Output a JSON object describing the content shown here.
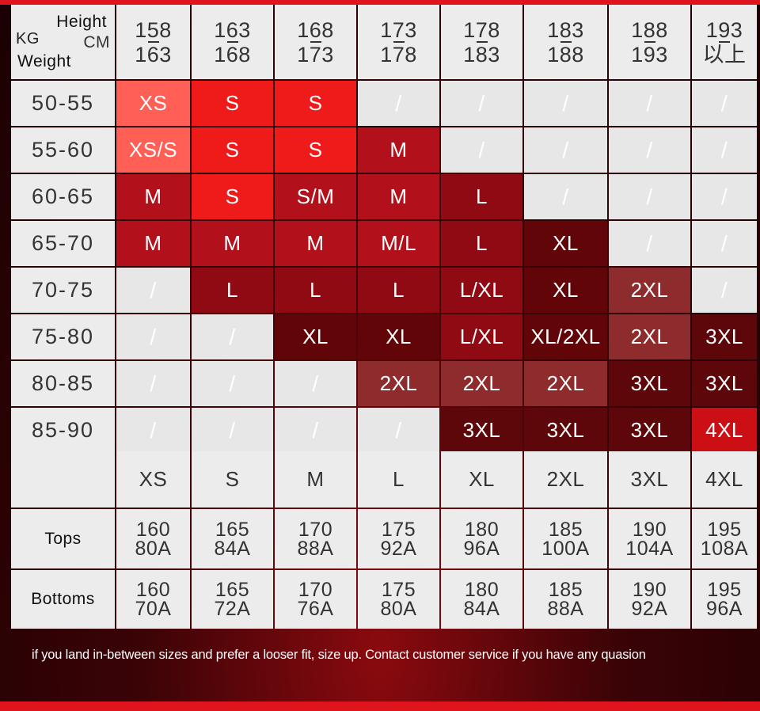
{
  "size_chart": {
    "corner": {
      "height_label": "Height",
      "kg_label": "KG",
      "cm_label": "CM",
      "weight_label": "Weight"
    },
    "height_ranges": [
      {
        "from": "158",
        "to": "163"
      },
      {
        "from": "163",
        "to": "168"
      },
      {
        "from": "168",
        "to": "173"
      },
      {
        "from": "173",
        "to": "178"
      },
      {
        "from": "178",
        "to": "183"
      },
      {
        "from": "183",
        "to": "188"
      },
      {
        "from": "188",
        "to": "193"
      },
      {
        "from": "193",
        "to": "以上"
      }
    ],
    "rows": [
      {
        "weight": "50-55",
        "cells": [
          "XS",
          "S",
          "S",
          "/",
          "/",
          "/",
          "/",
          "/"
        ]
      },
      {
        "weight": "55-60",
        "cells": [
          "XS/S",
          "S",
          "S",
          "M",
          "/",
          "/",
          "/",
          "/"
        ]
      },
      {
        "weight": "60-65",
        "cells": [
          "M",
          "S",
          "S/M",
          "M",
          "L",
          "/",
          "/",
          "/"
        ]
      },
      {
        "weight": "65-70",
        "cells": [
          "M",
          "M",
          "M",
          "M/L",
          "L",
          "XL",
          "/",
          "/"
        ]
      },
      {
        "weight": "70-75",
        "cells": [
          "/",
          "L",
          "L",
          "L",
          "L/XL",
          "XL",
          "2XL",
          "/"
        ]
      },
      {
        "weight": "75-80",
        "cells": [
          "/",
          "/",
          "XL",
          "XL",
          "L/XL",
          "XL/2XL",
          "2XL",
          "3XL"
        ]
      },
      {
        "weight": "80-85",
        "cells": [
          "/",
          "/",
          "/",
          "2XL",
          "2XL",
          "2XL",
          "3XL",
          "3XL"
        ]
      },
      {
        "weight": "85-90",
        "cells": [
          "/",
          "/",
          "/",
          "/",
          "3XL",
          "3XL",
          "3XL",
          "4XL"
        ]
      }
    ],
    "cell_colors": {
      "xs": "#ff5f55",
      "s": "#ef1b1b",
      "m": "#b2101a",
      "l": "#8f0a12",
      "xl": "#620509",
      "2xl": "#8e2b2c",
      "3xl": "#5e070a",
      "4xl": "#cc0f14"
    }
  },
  "spec_table": {
    "sizes": [
      "XS",
      "S",
      "M",
      "L",
      "XL",
      "2XL",
      "3XL",
      "4XL"
    ],
    "tops_label": "Tops",
    "tops": [
      {
        "h": "160",
        "code": "80A"
      },
      {
        "h": "165",
        "code": "84A"
      },
      {
        "h": "170",
        "code": "88A"
      },
      {
        "h": "175",
        "code": "92A"
      },
      {
        "h": "180",
        "code": "96A"
      },
      {
        "h": "185",
        "code": "100A"
      },
      {
        "h": "190",
        "code": "104A"
      },
      {
        "h": "195",
        "code": "108A"
      }
    ],
    "bottoms_label": "Bottoms",
    "bottoms": [
      {
        "h": "160",
        "code": "70A"
      },
      {
        "h": "165",
        "code": "72A"
      },
      {
        "h": "170",
        "code": "76A"
      },
      {
        "h": "175",
        "code": "80A"
      },
      {
        "h": "180",
        "code": "84A"
      },
      {
        "h": "185",
        "code": "88A"
      },
      {
        "h": "190",
        "code": "92A"
      },
      {
        "h": "195",
        "code": "96A"
      }
    ]
  },
  "footer_note": "if you land in-between sizes and prefer a looser fit, size up. Contact customer service if you have any quasion",
  "theme": {
    "accent": "#e0141c",
    "background": "#3a0306",
    "panel": "#ececec"
  }
}
